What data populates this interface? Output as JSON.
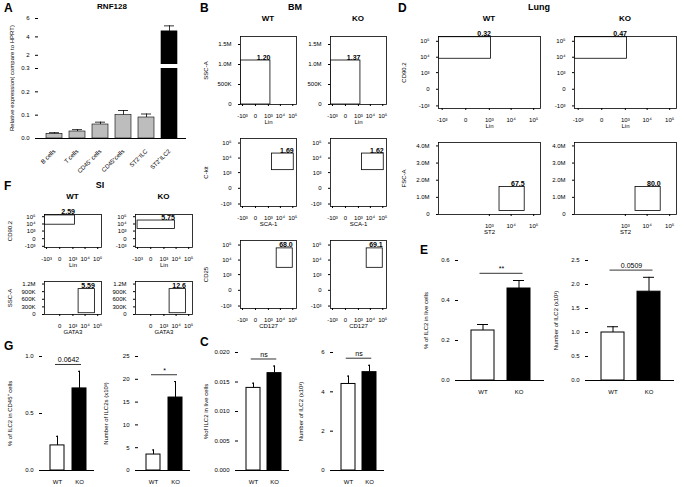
{
  "chart_data": [
    {
      "type": "bar",
      "panel": "A",
      "title": "RNF128",
      "y_label": "Relative expression( compare to HPRT)",
      "categories": [
        "B cells",
        "T cells",
        "CD45⁻ cells",
        "CD45⁺cells",
        "ST2⁻ILC",
        "ST2⁺ILC2"
      ],
      "values": [
        0.02,
        0.03,
        0.06,
        0.1,
        0.09,
        4.6
      ],
      "errors": [
        0.005,
        0.008,
        0.01,
        0.02,
        0.015,
        0.6
      ],
      "colors": [
        "#bdbdbd",
        "#bdbdbd",
        "#bdbdbd",
        "#bdbdbd",
        "#bdbdbd",
        "#000000"
      ],
      "ylim": [
        0,
        6
      ],
      "ybreak": [
        0.3,
        1
      ],
      "yticks": [
        {
          "value": 0,
          "label": "0.0"
        },
        0.1,
        0.2,
        0.3,
        2,
        4,
        6
      ]
    },
    {
      "type": "flow",
      "panel": "B",
      "title": "BM",
      "columns": [
        "WT",
        "KO"
      ],
      "rows": [
        {
          "x_label": "Lin",
          "y_label": "SSC-A",
          "log": "x",
          "xlim": [
            -1500,
            200000
          ],
          "xticks": [
            {
              "value": -1000,
              "label": "-10³"
            },
            0,
            {
              "value": 1000,
              "label": "10³"
            },
            {
              "value": 10000,
              "label": "10⁴"
            },
            {
              "value": 100000,
              "label": "10⁵"
            }
          ],
          "ylim": [
            0,
            1700000
          ],
          "yticks": [
            0,
            {
              "value": 500000,
              "label": "500K"
            },
            {
              "value": 1000000,
              "label": "1.0M"
            },
            {
              "value": 1500000,
              "label": "1.5M"
            }
          ],
          "gates": [
            {
              "x": [
                -1500,
                1500
              ],
              "y": [
                0,
                1100000
              ],
              "label": "1.20"
            },
            {
              "x": [
                -1500,
                1500
              ],
              "y": [
                0,
                1100000
              ],
              "label": "1.37"
            }
          ]
        },
        {
          "x_label": "SCA-1",
          "y_label": "C-kit",
          "log": true,
          "xlim": [
            -1500,
            200000
          ],
          "xticks": [
            {
              "value": -1000,
              "label": "-10³"
            },
            0,
            {
              "value": 1000,
              "label": "10³"
            },
            {
              "value": 10000,
              "label": "10⁴"
            },
            {
              "value": 100000,
              "label": "10⁵"
            }
          ],
          "ylim": [
            -1500,
            200000
          ],
          "yticks": [
            {
              "value": -1000,
              "label": "-10³"
            },
            0,
            {
              "value": 1000,
              "label": "10³"
            },
            {
              "value": 10000,
              "label": "10⁴"
            },
            {
              "value": 100000,
              "label": "10⁵"
            }
          ],
          "gates": [
            {
              "x": [
                2000,
                120000
              ],
              "y": [
                1500,
                20000
              ],
              "label": "1.69"
            },
            {
              "x": [
                2000,
                120000
              ],
              "y": [
                1500,
                20000
              ],
              "label": "1.62"
            }
          ]
        },
        {
          "x_label": "CD127",
          "y_label": "CD25",
          "log": true,
          "xlim": [
            -1500,
            200000
          ],
          "xticks": [
            {
              "value": -1000,
              "label": "-10³"
            },
            0,
            {
              "value": 1000,
              "label": "10³"
            },
            {
              "value": 10000,
              "label": "10⁴"
            },
            {
              "value": 100000,
              "label": "10⁵"
            }
          ],
          "ylim": [
            -1500,
            200000
          ],
          "yticks": [
            {
              "value": -1000,
              "label": "-10³"
            },
            0,
            {
              "value": 1000,
              "label": "10³"
            },
            {
              "value": 10000,
              "label": "10⁴"
            },
            {
              "value": 100000,
              "label": "10⁵"
            }
          ],
          "gates": [
            {
              "x": [
                5000,
                100000
              ],
              "y": [
                3000,
                60000
              ],
              "label": "68.0"
            },
            {
              "x": [
                5000,
                100000
              ],
              "y": [
                3000,
                60000
              ],
              "label": "69.1"
            }
          ]
        }
      ]
    },
    {
      "type": "bar",
      "panel": "C",
      "charts": [
        {
          "y_label": "%of ILC2 in live cells",
          "categories": [
            "WT",
            "KO"
          ],
          "values": [
            0.014,
            0.0165
          ],
          "errors": [
            0.0008,
            0.0012
          ],
          "colors": [
            "#ffffff",
            "#000000"
          ],
          "ylim": [
            0,
            0.02
          ],
          "yticks": [
            {
              "value": 0,
              "label": "0.000"
            },
            0.005,
            {
              "value": 0.01,
              "label": "0.010"
            },
            0.015,
            {
              "value": 0.02,
              "label": "0.020"
            }
          ],
          "annotation": "ns"
        },
        {
          "y_label": "Number of ILC2 (x10³)",
          "categories": [
            "WT",
            "KO"
          ],
          "values": [
            4.4,
            5.0
          ],
          "errors": [
            0.4,
            0.35
          ],
          "colors": [
            "#ffffff",
            "#000000"
          ],
          "ylim": [
            0,
            6
          ],
          "yticks": [
            0,
            2,
            4,
            6
          ],
          "annotation": "ns"
        }
      ]
    },
    {
      "type": "flow",
      "panel": "D",
      "title": "Lung",
      "columns": [
        "WT",
        "KO"
      ],
      "rows": [
        {
          "x_label": "Lin",
          "y_label": "CD90.2",
          "log": true,
          "xlim": [
            -1500,
            200000
          ],
          "xticks": [
            {
              "value": -1000,
              "label": "-10³"
            },
            0,
            {
              "value": 1000,
              "label": "10³"
            },
            {
              "value": 10000,
              "label": "10⁴"
            },
            {
              "value": 100000,
              "label": "10⁵"
            }
          ],
          "ylim": [
            -1500,
            200000
          ],
          "yticks": [
            {
              "value": -1000,
              "label": "-10³"
            },
            0,
            {
              "value": 1000,
              "label": "10³"
            },
            {
              "value": 10000,
              "label": "10⁴"
            },
            {
              "value": 100000,
              "label": "10⁵"
            }
          ],
          "gates": [
            {
              "x": [
                -1500,
                1200
              ],
              "y": [
                8000,
                180000
              ],
              "label": "0.32"
            },
            {
              "x": [
                -1500,
                1200
              ],
              "y": [
                8000,
                180000
              ],
              "label": "0.47"
            }
          ]
        },
        {
          "x_label": "ST2",
          "y_label": "FSC-A",
          "log": "x",
          "xlim": [
            -1500,
            200000
          ],
          "xticks": [
            {
              "value": 1000,
              "label": "10³"
            },
            {
              "value": 10000,
              "label": "10⁴"
            },
            {
              "value": 100000,
              "label": "10⁵"
            }
          ],
          "ylim": [
            0,
            4200000
          ],
          "yticks": [
            0,
            {
              "value": 1000000,
              "label": "1.0M"
            },
            {
              "value": 2000000,
              "label": "2.0M"
            },
            {
              "value": 3000000,
              "label": "3.0M"
            },
            {
              "value": 4000000,
              "label": "4.0M"
            }
          ],
          "gates": [
            {
              "x": [
                3000,
                40000
              ],
              "y": [
                200000,
                1600000
              ],
              "label": "67.5"
            },
            {
              "x": [
                3000,
                40000
              ],
              "y": [
                200000,
                1600000
              ],
              "label": "80.0"
            }
          ]
        }
      ]
    },
    {
      "type": "bar",
      "panel": "E",
      "charts": [
        {
          "y_label": "% of ILC2 in live cells",
          "categories": [
            "WT",
            "KO"
          ],
          "values": [
            0.25,
            0.46
          ],
          "errors": [
            0.03,
            0.04
          ],
          "colors": [
            "#ffffff",
            "#000000"
          ],
          "ylim": [
            0,
            0.6
          ],
          "yticks": [
            {
              "value": 0,
              "label": "0.0"
            },
            0.2,
            0.4,
            0.6
          ],
          "annotation": "**"
        },
        {
          "y_label": "Number of ILC2 (x10³)",
          "categories": [
            "WT",
            "KO"
          ],
          "values": [
            1.0,
            1.85
          ],
          "errors": [
            0.12,
            0.3
          ],
          "colors": [
            "#ffffff",
            "#000000"
          ],
          "ylim": [
            0,
            2.5
          ],
          "yticks": [
            {
              "value": 0,
              "label": "0.0"
            },
            0.5,
            {
              "value": 1,
              "label": "1.0"
            },
            1.5,
            {
              "value": 2,
              "label": "2.0"
            },
            2.5
          ],
          "annotation": "0.0509"
        }
      ]
    },
    {
      "type": "flow",
      "panel": "F",
      "title": "SI",
      "columns": [
        "WT",
        "KO"
      ],
      "rows": [
        {
          "x_label": "Lin",
          "y_label": "CD90.2",
          "log": true,
          "xlim": [
            -1500,
            200000
          ],
          "xticks": [
            {
              "value": -1000,
              "label": "-10³"
            },
            0,
            {
              "value": 1000,
              "label": "10³"
            },
            {
              "value": 10000,
              "label": "10⁴"
            },
            {
              "value": 100000,
              "label": "10⁵"
            }
          ],
          "ylim": [
            -1500,
            200000
          ],
          "yticks": [
            {
              "value": -1000,
              "label": "-10³"
            },
            0,
            {
              "value": 1000,
              "label": "10³"
            },
            {
              "value": 10000,
              "label": "10⁴"
            },
            {
              "value": 100000,
              "label": "10⁵"
            }
          ],
          "gates": [
            {
              "x": [
                -1500,
                1500
              ],
              "y": [
                8000,
                150000
              ],
              "label": "2.59"
            },
            {
              "x": [
                -1000,
                8000
              ],
              "y": [
                2000,
                30000
              ],
              "label": "5.75"
            }
          ]
        },
        {
          "x_label": "GATA3",
          "y_label": "SSC-A",
          "log": "x",
          "xlim": [
            -1500,
            200000
          ],
          "xticks": [
            0,
            {
              "value": 1000,
              "label": "10³"
            },
            {
              "value": 10000,
              "label": "10⁴"
            },
            {
              "value": 100000,
              "label": "10⁵"
            }
          ],
          "ylim": [
            0,
            1300000
          ],
          "yticks": [
            0,
            {
              "value": 300000,
              "label": "300K"
            },
            {
              "value": 600000,
              "label": "600K"
            },
            {
              "value": 900000,
              "label": "900K"
            },
            {
              "value": 1200000,
              "label": "1.2M"
            }
          ],
          "gates": [
            {
              "x": [
                3000,
                60000
              ],
              "y": [
                50000,
                1000000
              ],
              "label": "5.59"
            },
            {
              "x": [
                3000,
                60000
              ],
              "y": [
                50000,
                1000000
              ],
              "label": "12.6"
            }
          ]
        }
      ]
    },
    {
      "type": "bar",
      "panel": "G",
      "charts": [
        {
          "y_label": "% of ILC2 in CD45⁺ cells",
          "categories": [
            "WT",
            "KO"
          ],
          "values": [
            0.22,
            0.72
          ],
          "errors": [
            0.08,
            0.15
          ],
          "colors": [
            "#ffffff",
            "#000000"
          ],
          "ylim": [
            0,
            1
          ],
          "yticks": [
            {
              "value": 0,
              "label": "0.0"
            },
            0.5,
            {
              "value": 1,
              "label": "1.0"
            }
          ],
          "annotation": "0.0642"
        },
        {
          "y_label": "Number of ILC2s (x10³)",
          "categories": [
            "WT",
            "KO"
          ],
          "values": [
            3.5,
            16
          ],
          "errors": [
            1,
            3.5
          ],
          "colors": [
            "#ffffff",
            "#000000"
          ],
          "ylim": [
            0,
            25
          ],
          "yticks": [
            0,
            5,
            10,
            15,
            20,
            25
          ],
          "annotation": "*"
        }
      ]
    }
  ]
}
